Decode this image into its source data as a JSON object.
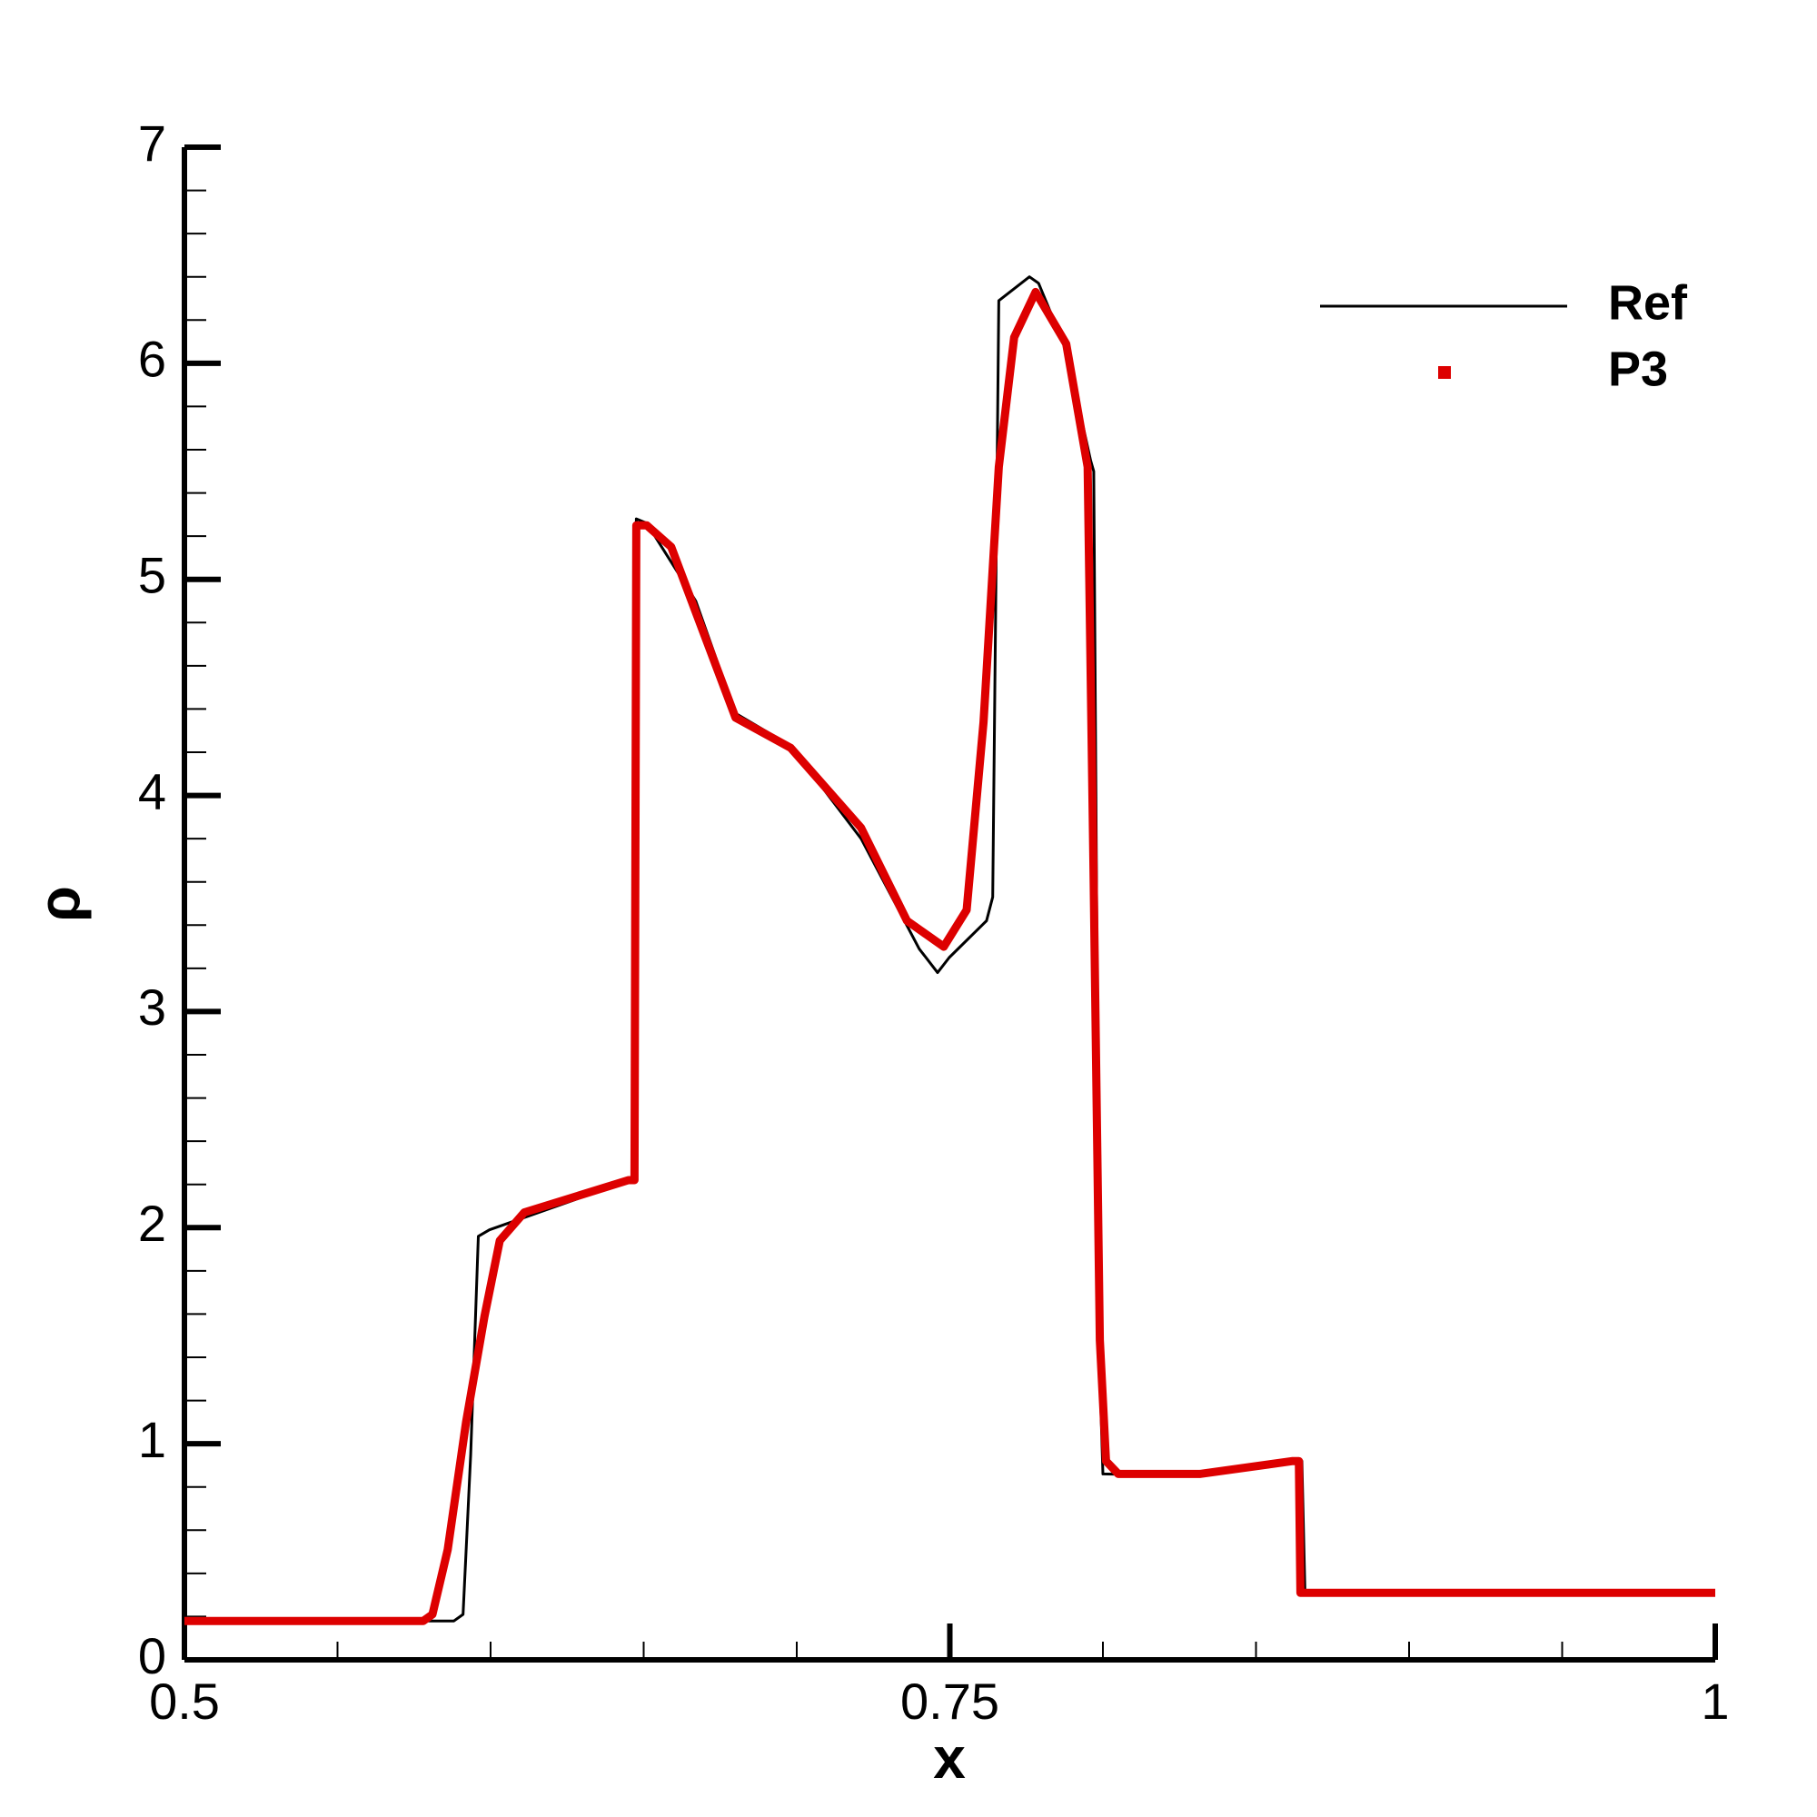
{
  "chart_data": {
    "type": "line",
    "xlabel": "x",
    "ylabel": "ρ",
    "xlim": [
      0.5,
      1
    ],
    "ylim": [
      0,
      7
    ],
    "xticks": [
      0.5,
      0.75,
      1
    ],
    "yticks": [
      0,
      1,
      2,
      3,
      4,
      5,
      6,
      7
    ],
    "legend": "top-right",
    "series": [
      {
        "name": "Ref",
        "color": "#000000",
        "style": "line",
        "x": [
          0.5,
          0.588,
          0.591,
          0.5935,
          0.596,
          0.5996,
          0.6456,
          0.647,
          0.6476,
          0.651,
          0.667,
          0.68,
          0.698,
          0.721,
          0.74,
          0.746,
          0.7498,
          0.762,
          0.764,
          0.766,
          0.776,
          0.779,
          0.788,
          0.796,
          0.797,
          0.799,
          0.8,
          0.8316,
          0.862,
          0.865,
          0.866,
          1.0
        ],
        "values": [
          0.18,
          0.18,
          0.21,
          0.95,
          1.96,
          1.99,
          2.22,
          2.24,
          5.28,
          5.26,
          4.9,
          4.38,
          4.23,
          3.8,
          3.29,
          3.18,
          3.25,
          3.42,
          3.53,
          6.29,
          6.4,
          6.37,
          6.06,
          5.55,
          5.5,
          1.32,
          0.86,
          0.85,
          0.92,
          0.92,
          0.31,
          0.31
        ]
      },
      {
        "name": "P3",
        "color": "#dd0000",
        "style": "markers",
        "x": [
          0.5,
          0.578,
          0.581,
          0.586,
          0.592,
          0.598,
          0.603,
          0.611,
          0.645,
          0.647,
          0.6476,
          0.651,
          0.659,
          0.68,
          0.698,
          0.721,
          0.736,
          0.748,
          0.7555,
          0.761,
          0.766,
          0.771,
          0.778,
          0.788,
          0.795,
          0.797,
          0.799,
          0.801,
          0.805,
          0.8316,
          0.862,
          0.864,
          0.8645,
          1.0
        ],
        "values": [
          0.18,
          0.18,
          0.21,
          0.51,
          1.1,
          1.59,
          1.94,
          2.07,
          2.22,
          2.22,
          5.25,
          5.25,
          5.15,
          4.36,
          4.22,
          3.85,
          3.42,
          3.3,
          3.47,
          4.34,
          5.52,
          6.12,
          6.33,
          6.09,
          5.52,
          3.58,
          1.48,
          0.92,
          0.86,
          0.86,
          0.92,
          0.92,
          0.31,
          0.31
        ]
      }
    ]
  }
}
